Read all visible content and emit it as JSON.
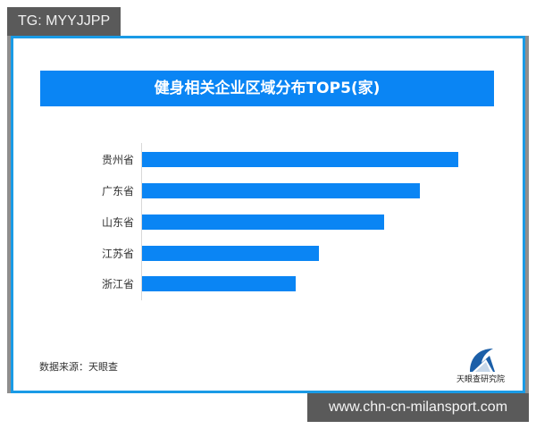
{
  "tag": {
    "label": "TG: MYYJJPP"
  },
  "watermark": {
    "label": "www.chn-cn-milansport.com"
  },
  "title": "健身相关企业区域分布TOP5(家)",
  "source": "数据来源：天眼查",
  "logo": {
    "text": "天眼查研究院",
    "icon": "tianyancha-logo-icon"
  },
  "colors": {
    "bar": "#0a85f4",
    "frame": "#1a9be6",
    "tag_bg": "#5a5a5a"
  },
  "chart_data": {
    "type": "bar",
    "orientation": "horizontal",
    "title": "健身相关企业区域分布TOP5(家)",
    "categories": [
      "贵州省",
      "广东省",
      "山东省",
      "江苏省",
      "浙江省"
    ],
    "values": [
      354,
      311,
      271,
      198,
      172
    ],
    "value_note": "No axis ticks or data labels shown; values are relative bar lengths in pixels",
    "xlabel": "",
    "ylabel": "",
    "grid": false,
    "legend": null,
    "source": "数据来源：天眼查"
  }
}
